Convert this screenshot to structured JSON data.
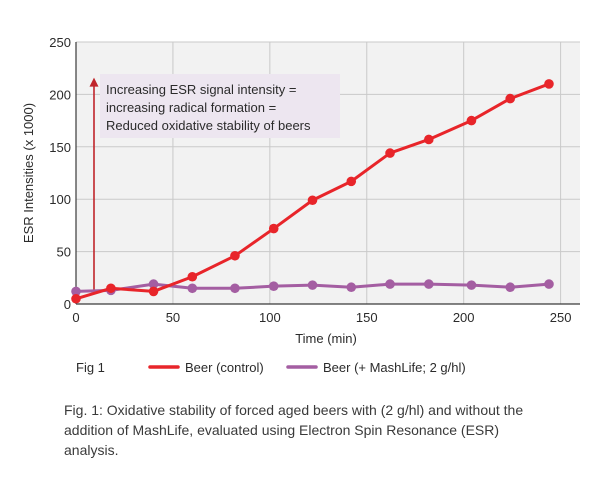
{
  "chart_data": {
    "type": "line",
    "xlabel": "Time (min)",
    "ylabel": "ESR Intensities (x 1000)",
    "xlim": [
      0,
      260
    ],
    "ylim": [
      0,
      250
    ],
    "xticks": [
      0,
      50,
      100,
      150,
      200,
      250
    ],
    "yticks": [
      0,
      50,
      100,
      150,
      200,
      250
    ],
    "grid": true,
    "annotation": {
      "lines": [
        "Increasing ESR signal intensity =",
        "increasing radical formation =",
        "Reduced oxidative stability of beers"
      ],
      "arrow_from_y": 10,
      "arrow_to_y": 215
    },
    "series": [
      {
        "name": "Beer (control)",
        "color": "#e8252a",
        "x": [
          0,
          18,
          40,
          60,
          82,
          102,
          122,
          142,
          162,
          182,
          204,
          224,
          244
        ],
        "y": [
          5,
          15,
          12,
          26,
          46,
          72,
          99,
          117,
          144,
          157,
          175,
          196,
          210
        ]
      },
      {
        "name": "Beer (+ MashLife; 2 g/hl)",
        "color": "#a45ea2",
        "x": [
          0,
          18,
          40,
          60,
          82,
          102,
          122,
          142,
          162,
          182,
          204,
          224,
          244
        ],
        "y": [
          12,
          13,
          19,
          15,
          15,
          17,
          18,
          16,
          19,
          19,
          18,
          16,
          19
        ]
      }
    ]
  },
  "legend": {
    "fig_label": "Fig 1",
    "items": [
      "Beer (control)",
      "Beer (+ MashLife; 2 g/hl)"
    ]
  },
  "caption": "Fig. 1: Oxidative stability of forced aged beers with (2 g/hl) and without the addition of MashLife, evaluated using Electron Spin Resonance (ESR) analysis."
}
